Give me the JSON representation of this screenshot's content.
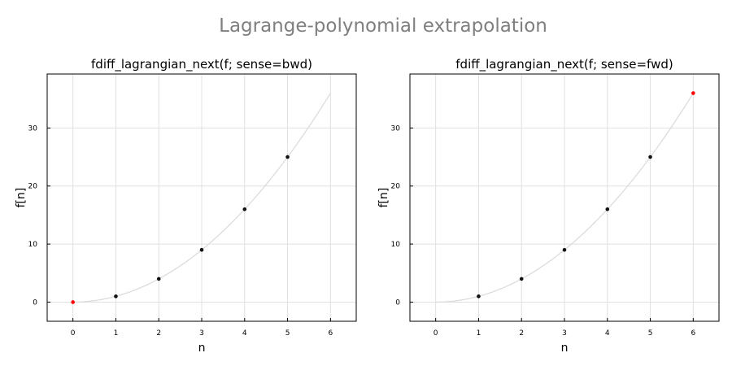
{
  "suptitle": "Lagrange-polynomial extrapolation",
  "chart_data": [
    {
      "type": "scatter",
      "title": "fdiff_lagrangian_next(f; sense=bwd)",
      "xlabel": "n",
      "ylabel": "f[n]",
      "xlim": [
        -0.6,
        6.6
      ],
      "ylim": [
        -3.3,
        39.3
      ],
      "xticks": [
        0,
        1,
        2,
        3,
        4,
        5,
        6
      ],
      "yticks": [
        0,
        10,
        20,
        30
      ],
      "grid": true,
      "curve": {
        "function": "n^2",
        "x_range": [
          0,
          6
        ],
        "color": "#dcdcdc"
      },
      "series": [
        {
          "x": [
            1,
            2,
            3,
            4,
            5
          ],
          "y": [
            1,
            4,
            9,
            16,
            25
          ],
          "color": "#111111"
        },
        {
          "x": [
            0
          ],
          "y": [
            0
          ],
          "color": "#ff0000"
        }
      ]
    },
    {
      "type": "scatter",
      "title": "fdiff_lagrangian_next(f; sense=fwd)",
      "xlabel": "n",
      "ylabel": "f[n]",
      "xlim": [
        -0.6,
        6.6
      ],
      "ylim": [
        -3.3,
        39.3
      ],
      "xticks": [
        0,
        1,
        2,
        3,
        4,
        5,
        6
      ],
      "yticks": [
        0,
        10,
        20,
        30
      ],
      "grid": true,
      "curve": {
        "function": "n^2",
        "x_range": [
          0,
          6
        ],
        "color": "#dcdcdc"
      },
      "series": [
        {
          "x": [
            1,
            2,
            3,
            4,
            5
          ],
          "y": [
            1,
            4,
            9,
            16,
            25
          ],
          "color": "#111111"
        },
        {
          "x": [
            6
          ],
          "y": [
            36
          ],
          "color": "#ff0000"
        }
      ]
    }
  ]
}
